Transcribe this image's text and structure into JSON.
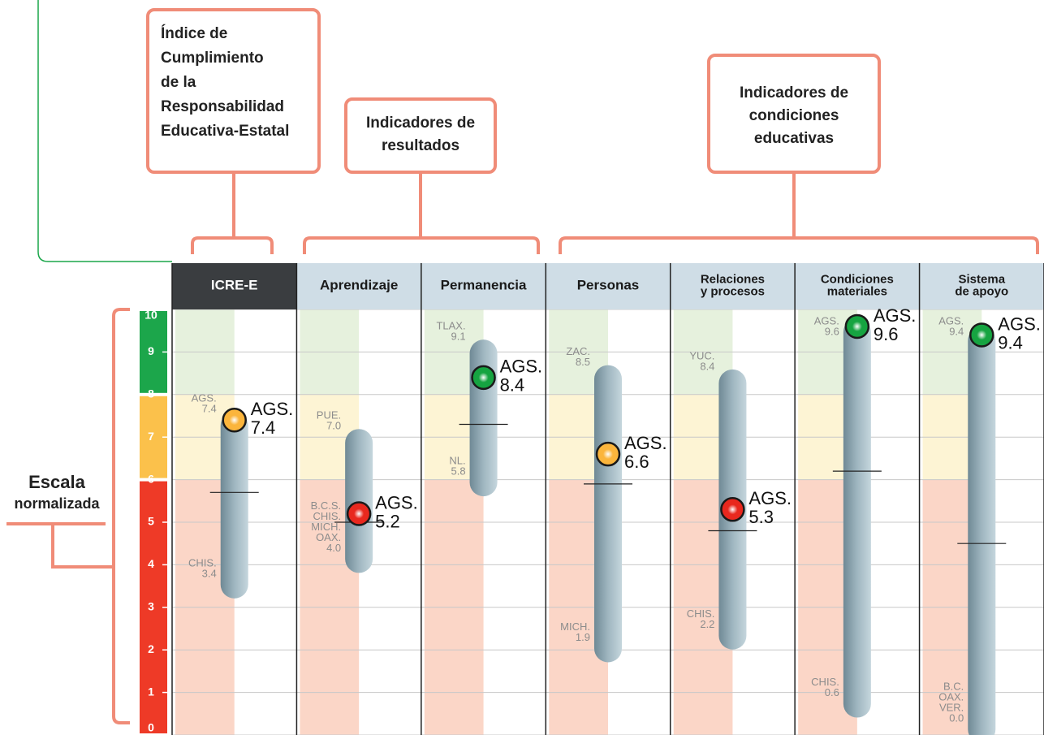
{
  "chart_data": {
    "type": "range",
    "boxes": [
      {
        "lines": [
          "Índice de",
          "Cumplimiento",
          "de la",
          "Responsabilidad",
          "Educativa-Estatal"
        ]
      },
      {
        "lines": [
          "Indicadores de",
          "resultados"
        ]
      },
      {
        "lines": [
          "Indicadores de",
          "condiciones",
          "educativas"
        ]
      }
    ],
    "y_label": [
      "Escala",
      "normalizada"
    ],
    "ylim": [
      0,
      10
    ],
    "yticks": [
      0,
      1,
      2,
      3,
      4,
      5,
      6,
      7,
      8,
      9,
      10
    ],
    "grid": true,
    "bands": [
      {
        "from": 0,
        "to": 6,
        "color": "#ee3a27",
        "bg": "#fbd6c7"
      },
      {
        "from": 6,
        "to": 8,
        "color": "#fbc14b",
        "bg": "#fdf4d4"
      },
      {
        "from": 8,
        "to": 10,
        "color": "#1ca64b",
        "bg": "#e6f1dd"
      }
    ],
    "categories": [
      [
        "ICRE-E"
      ],
      [
        "Aprendizaje"
      ],
      [
        "Permanencia"
      ],
      [
        "Personas"
      ],
      [
        "Relaciones",
        "y procesos"
      ],
      [
        "Condiciones",
        "materiales"
      ],
      [
        "Sistema",
        "de apoyo"
      ]
    ],
    "series": [
      {
        "max": 7.4,
        "max_label": "7.4",
        "max_states": [
          "AGS."
        ],
        "min": 3.4,
        "min_label": "3.4",
        "min_states": [
          "CHIS."
        ],
        "median": 5.7,
        "ags_name": "AGS.",
        "ags": 7.4,
        "ags_label": "7.4",
        "color": "#fbb53c"
      },
      {
        "max": 7.0,
        "max_label": "7.0",
        "max_states": [
          "PUE."
        ],
        "min": 4.0,
        "min_label": "4.0",
        "min_states": [
          "B.C.S.",
          "CHIS.",
          "MICH.",
          "OAX."
        ],
        "median": 5.0,
        "ags_name": "AGS.",
        "ags": 5.2,
        "ags_label": "5.2",
        "color": "#e8281e"
      },
      {
        "max": 9.1,
        "max_label": "9.1",
        "max_states": [
          "TLAX."
        ],
        "min": 5.8,
        "min_label": "5.8",
        "min_states": [
          "NL."
        ],
        "median": 7.3,
        "ags_name": "AGS.",
        "ags": 8.4,
        "ags_label": "8.4",
        "color": "#16a441"
      },
      {
        "max": 8.5,
        "max_label": "8.5",
        "max_states": [
          "ZAC."
        ],
        "min": 1.9,
        "min_label": "1.9",
        "min_states": [
          "MICH."
        ],
        "median": 5.9,
        "ags_name": "AGS.",
        "ags": 6.6,
        "ags_label": "6.6",
        "color": "#fbb53c"
      },
      {
        "max": 8.4,
        "max_label": "8.4",
        "max_states": [
          "YUC."
        ],
        "min": 2.2,
        "min_label": "2.2",
        "min_states": [
          "CHIS."
        ],
        "median": 4.8,
        "ags_name": "AGS.",
        "ags": 5.3,
        "ags_label": "5.3",
        "color": "#e8281e"
      },
      {
        "max": 9.6,
        "max_label": "9.6",
        "max_states": [
          "AGS."
        ],
        "min": 0.6,
        "min_label": "0.6",
        "min_states": [
          "CHIS."
        ],
        "median": 6.2,
        "ags_name": "AGS.",
        "ags": 9.6,
        "ags_label": "9.6",
        "color": "#16a441"
      },
      {
        "max": 9.4,
        "max_label": "9.4",
        "max_states": [
          "AGS."
        ],
        "min": 0.0,
        "min_label": "0.0",
        "min_states": [
          "B.C.",
          "OAX.",
          "VER."
        ],
        "median": 4.5,
        "ags_name": "AGS.",
        "ags": 9.4,
        "ags_label": "9.4",
        "color": "#16a441"
      }
    ]
  }
}
